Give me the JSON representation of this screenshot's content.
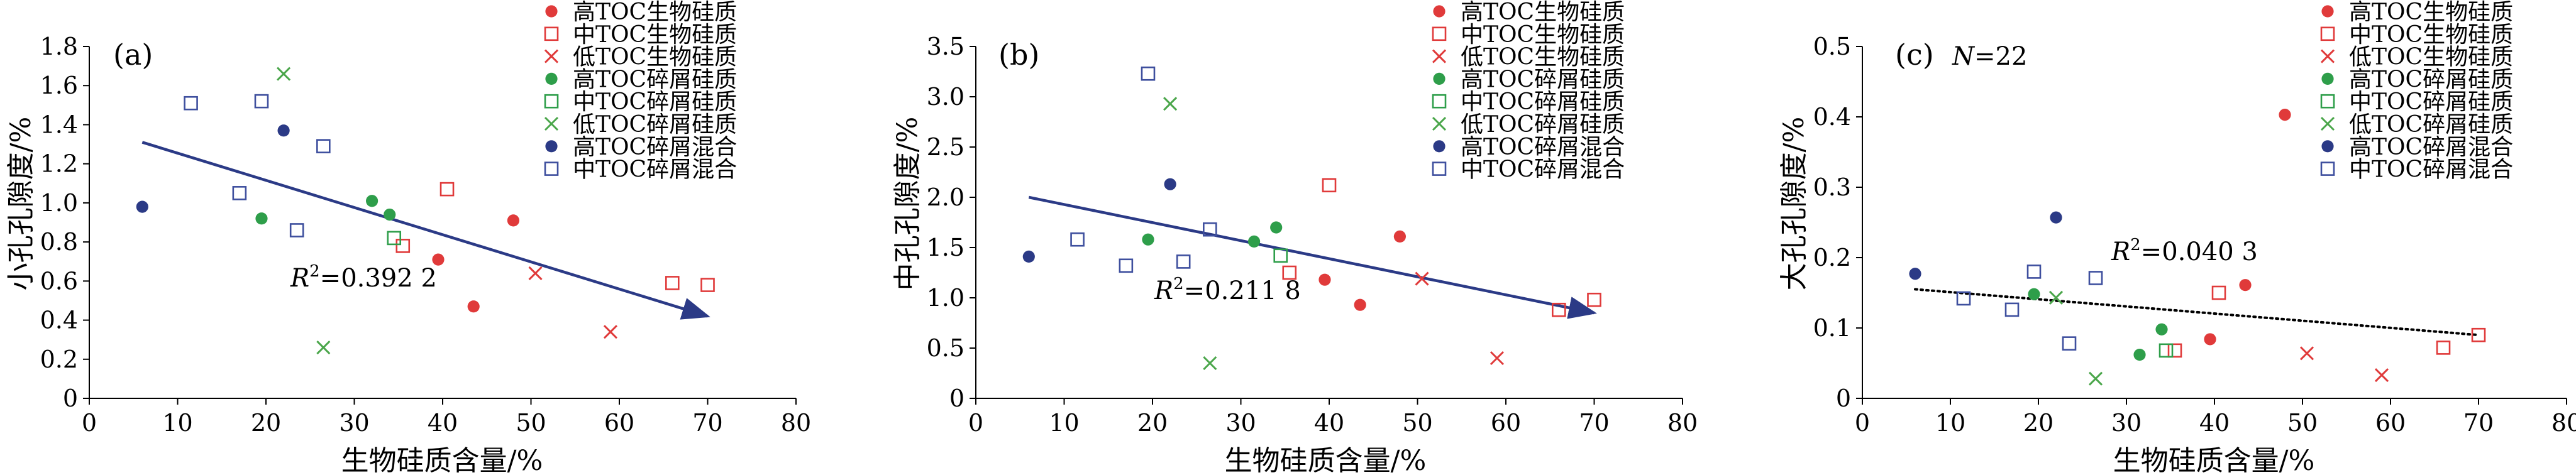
{
  "colors": {
    "red": "#e03a3a",
    "green": "#2e9e4a",
    "green_cross": "#4aa64a",
    "navy": "#2b3a86",
    "square_blue": "#3e4f9e",
    "arrow": "#2b3a86",
    "axis": "#000000"
  },
  "legend_entries": [
    {
      "label": "高TOC生物硅质",
      "marker": "circle-filled",
      "color": "#e03a3a"
    },
    {
      "label": "中TOC生物硅质",
      "marker": "square-open",
      "color": "#e03a3a"
    },
    {
      "label": "低TOC生物硅质",
      "marker": "cross",
      "color": "#e03a3a"
    },
    {
      "label": "高TOC碎屑硅质",
      "marker": "circle-filled",
      "color": "#2e9e4a"
    },
    {
      "label": "中TOC碎屑硅质",
      "marker": "square-open",
      "color": "#2e9e4a"
    },
    {
      "label": "低TOC碎屑硅质",
      "marker": "cross",
      "color": "#4aa64a"
    },
    {
      "label": "高TOC碎屑混合",
      "marker": "circle-filled",
      "color": "#2b3a86"
    },
    {
      "label": "中TOC碎屑混合",
      "marker": "square-open",
      "color": "#3e4f9e"
    }
  ],
  "chart_data": [
    {
      "type": "scatter",
      "panel_label": "(a)",
      "xlabel": "生物硅质含量/%",
      "ylabel": "小孔孔隙度/%",
      "xlim": [
        0,
        80
      ],
      "ylim": [
        0,
        1.8
      ],
      "xticks": [
        "0",
        "10",
        "20",
        "30",
        "40",
        "50",
        "60",
        "70",
        "80"
      ],
      "yticks": [
        "0",
        "0.2",
        "0.4",
        "0.6",
        "0.8",
        "1.0",
        "1.2",
        "1.4",
        "1.6",
        "1.8"
      ],
      "annotation_prefix": "R",
      "annotation_sup": "2",
      "annotation_value": "=0.392 2",
      "trend": {
        "style": "arrow",
        "from": [
          6,
          1.31
        ],
        "to": [
          70,
          0.42
        ]
      },
      "series": [
        {
          "name": "高TOC生物硅质",
          "points": [
            [
              39.5,
              0.71
            ],
            [
              43.5,
              0.47
            ],
            [
              48,
              0.91
            ]
          ]
        },
        {
          "name": "中TOC生物硅质",
          "points": [
            [
              35.5,
              0.78
            ],
            [
              40.5,
              1.07
            ],
            [
              66,
              0.59
            ],
            [
              70,
              0.58
            ]
          ]
        },
        {
          "name": "低TOC生物硅质",
          "points": [
            [
              50.5,
              0.64
            ],
            [
              59,
              0.34
            ]
          ]
        },
        {
          "name": "高TOC碎屑硅质",
          "points": [
            [
              19.5,
              0.92
            ],
            [
              32,
              1.01
            ],
            [
              34,
              0.94
            ]
          ]
        },
        {
          "name": "中TOC碎屑硅质",
          "points": [
            [
              34.5,
              0.82
            ]
          ]
        },
        {
          "name": "低TOC碎屑硅质",
          "points": [
            [
              22,
              1.66
            ],
            [
              26.5,
              0.26
            ]
          ]
        },
        {
          "name": "高TOC碎屑混合",
          "points": [
            [
              6,
              0.98
            ],
            [
              22,
              1.37
            ]
          ]
        },
        {
          "name": "中TOC碎屑混合",
          "points": [
            [
              11.5,
              1.51
            ],
            [
              17,
              1.05
            ],
            [
              19.5,
              1.52
            ],
            [
              23.5,
              0.86
            ],
            [
              26.5,
              1.29
            ]
          ]
        }
      ]
    },
    {
      "type": "scatter",
      "panel_label": "(b)",
      "xlabel": "生物硅质含量/%",
      "ylabel": "中孔孔隙度/%",
      "xlim": [
        0,
        80
      ],
      "ylim": [
        0,
        3.5
      ],
      "xticks": [
        "0",
        "10",
        "20",
        "30",
        "40",
        "50",
        "60",
        "70",
        "80"
      ],
      "yticks": [
        "0",
        "0.5",
        "1.0",
        "1.5",
        "2.0",
        "2.5",
        "3.0",
        "3.5"
      ],
      "annotation_prefix": "R",
      "annotation_sup": "2",
      "annotation_value": "=0.211 8",
      "trend": {
        "style": "arrow",
        "from": [
          6,
          2.0
        ],
        "to": [
          70,
          0.85
        ]
      },
      "series": [
        {
          "name": "高TOC生物硅质",
          "points": [
            [
              39.5,
              1.18
            ],
            [
              43.5,
              0.93
            ],
            [
              48,
              1.61
            ]
          ]
        },
        {
          "name": "中TOC生物硅质",
          "points": [
            [
              35.5,
              1.25
            ],
            [
              40,
              2.12
            ],
            [
              66,
              0.88
            ],
            [
              70,
              0.98
            ]
          ]
        },
        {
          "name": "低TOC生物硅质",
          "points": [
            [
              50.5,
              1.19
            ],
            [
              59,
              0.4
            ]
          ]
        },
        {
          "name": "高TOC碎屑硅质",
          "points": [
            [
              19.5,
              1.58
            ],
            [
              31.5,
              1.56
            ],
            [
              34,
              1.7
            ]
          ]
        },
        {
          "name": "中TOC碎屑硅质",
          "points": [
            [
              34.5,
              1.42
            ]
          ]
        },
        {
          "name": "低TOC碎屑硅质",
          "points": [
            [
              22,
              2.93
            ],
            [
              26.5,
              0.35
            ]
          ]
        },
        {
          "name": "高TOC碎屑混合",
          "points": [
            [
              6,
              1.41
            ],
            [
              22,
              2.13
            ]
          ]
        },
        {
          "name": "中TOC碎屑混合",
          "points": [
            [
              11.5,
              1.58
            ],
            [
              17,
              1.32
            ],
            [
              19.5,
              3.23
            ],
            [
              23.5,
              1.36
            ],
            [
              26.5,
              1.68
            ]
          ]
        }
      ]
    },
    {
      "type": "scatter",
      "panel_label": "(c)",
      "n_label_prefix": "N",
      "n_label_value": "=22",
      "xlabel": "生物硅质含量/%",
      "ylabel": "大孔孔隙度/%",
      "xlim": [
        0,
        80
      ],
      "ylim": [
        0,
        0.5
      ],
      "xticks": [
        "0",
        "10",
        "20",
        "30",
        "40",
        "50",
        "60",
        "70",
        "80"
      ],
      "yticks": [
        "0",
        "0.1",
        "0.2",
        "0.3",
        "0.4",
        "0.5"
      ],
      "annotation_prefix": "R",
      "annotation_sup": "2",
      "annotation_value": "=0.040 3",
      "trend": {
        "style": "dotted",
        "from": [
          6,
          0.155
        ],
        "to": [
          70,
          0.09
        ]
      },
      "series": [
        {
          "name": "高TOC生物硅质",
          "points": [
            [
              39.5,
              0.084
            ],
            [
              43.5,
              0.161
            ],
            [
              48,
              0.403
            ]
          ]
        },
        {
          "name": "中TOC生物硅质",
          "points": [
            [
              35.5,
              0.068
            ],
            [
              40.5,
              0.15
            ],
            [
              66,
              0.072
            ],
            [
              70,
              0.09
            ]
          ]
        },
        {
          "name": "低TOC生物硅质",
          "points": [
            [
              50.5,
              0.064
            ],
            [
              59,
              0.033
            ]
          ]
        },
        {
          "name": "高TOC碎屑硅质",
          "points": [
            [
              19.5,
              0.148
            ],
            [
              31.5,
              0.062
            ],
            [
              34,
              0.098
            ]
          ]
        },
        {
          "name": "中TOC碎屑硅质",
          "points": [
            [
              34.5,
              0.068
            ]
          ]
        },
        {
          "name": "低TOC碎屑硅质",
          "points": [
            [
              22,
              0.143
            ],
            [
              26.5,
              0.028
            ]
          ]
        },
        {
          "name": "高TOC碎屑混合",
          "points": [
            [
              6,
              0.177
            ],
            [
              22,
              0.257
            ]
          ]
        },
        {
          "name": "中TOC碎屑混合",
          "points": [
            [
              11.5,
              0.142
            ],
            [
              17,
              0.126
            ],
            [
              19.5,
              0.18
            ],
            [
              23.5,
              0.078
            ],
            [
              26.5,
              0.171
            ]
          ]
        }
      ]
    }
  ]
}
